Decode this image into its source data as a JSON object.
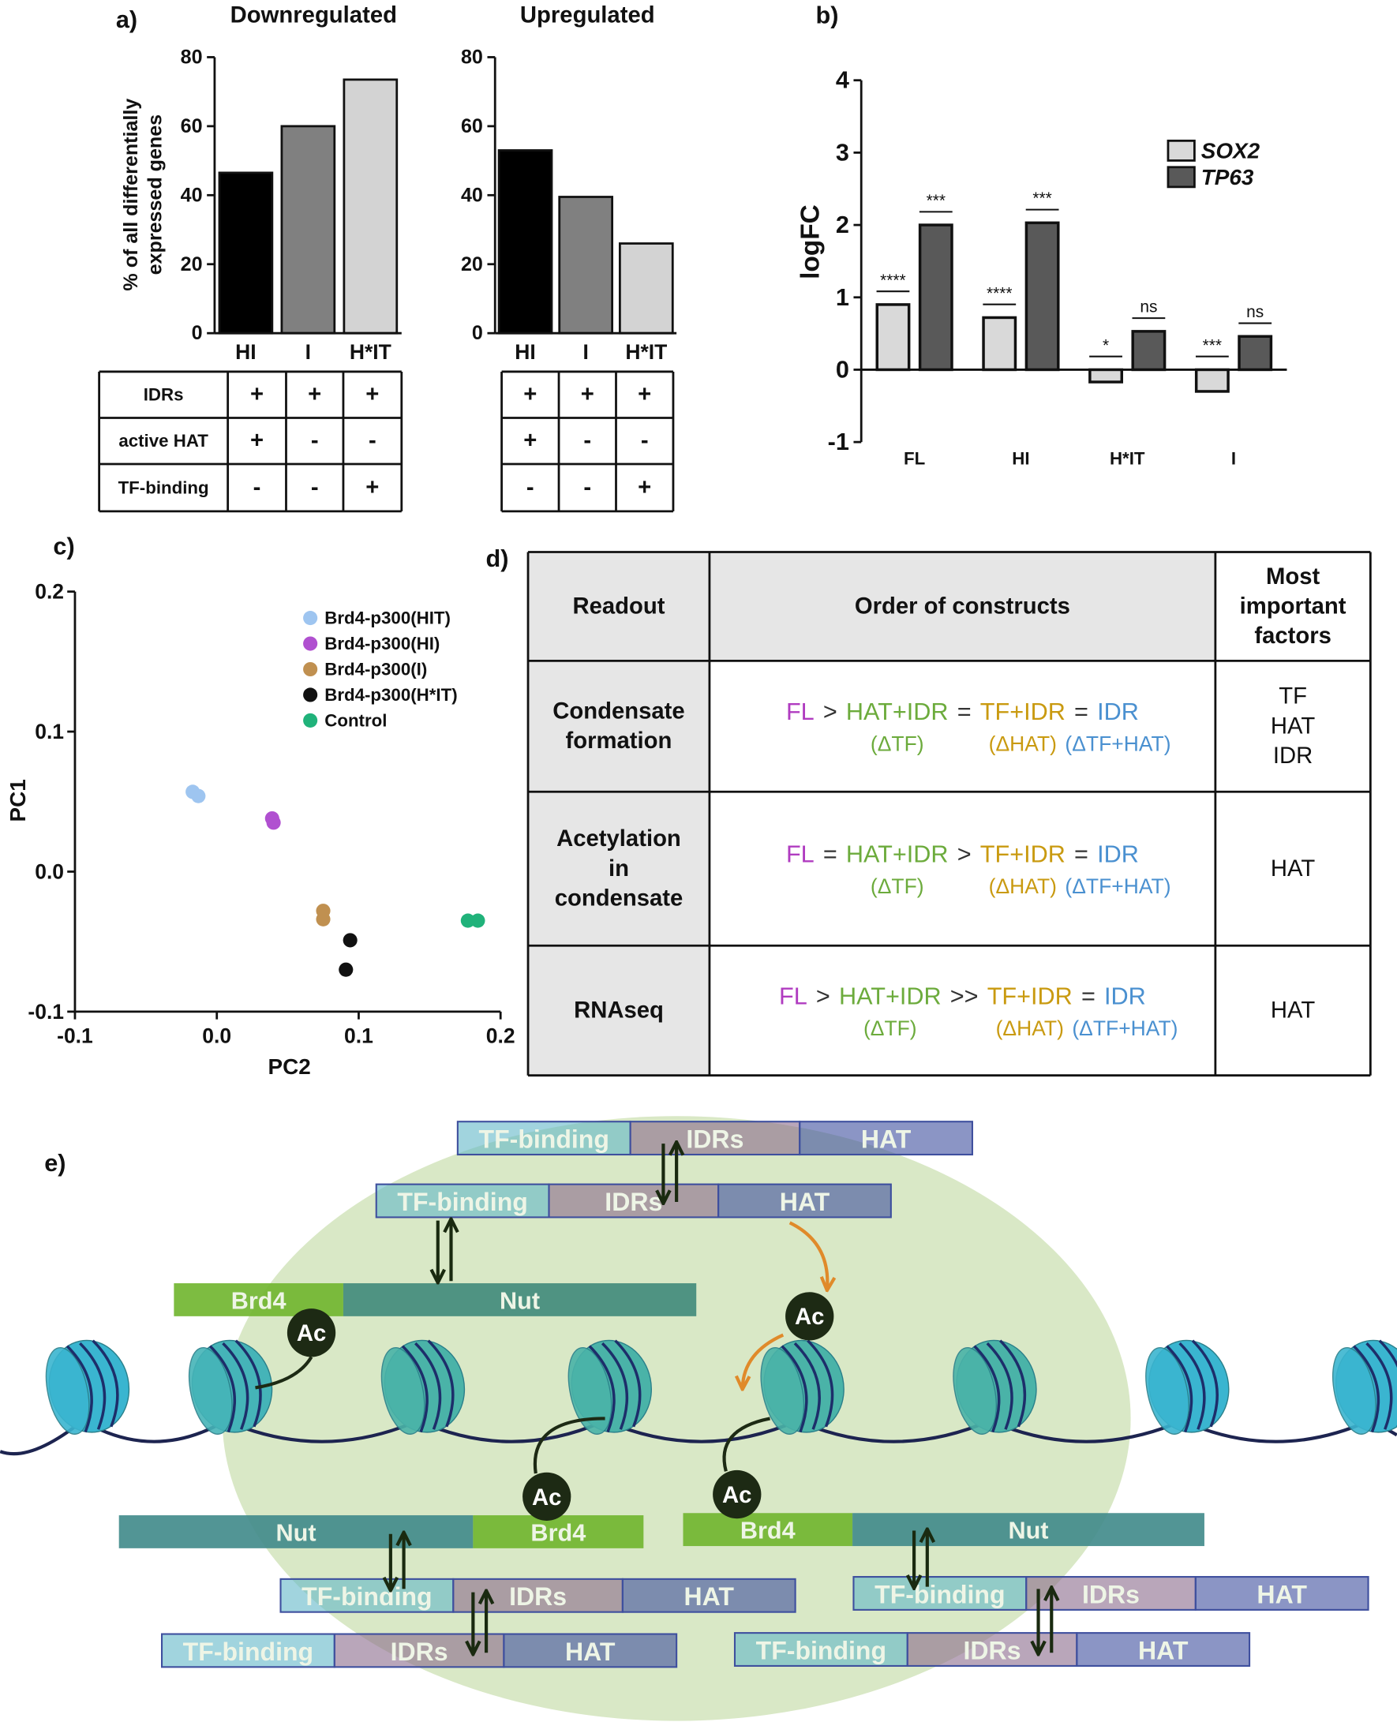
{
  "panel_labels": [
    "a)",
    "b)",
    "c)",
    "d)",
    "e)"
  ],
  "chart_data": [
    {
      "type": "bar",
      "title": "Downregulated",
      "y_label": [
        "% of all differentially",
        "expressed genes"
      ],
      "categories": [
        "HI",
        "I",
        "H*IT"
      ],
      "values": [
        46.5,
        60,
        73.5
      ],
      "colors": [
        "#000000",
        "#808080",
        "#d3d3d3"
      ],
      "ylim": [
        0,
        80
      ],
      "yticks": [
        0,
        20,
        40,
        60,
        80
      ]
    },
    {
      "type": "bar",
      "title": "Upregulated",
      "categories": [
        "HI",
        "I",
        "H*IT"
      ],
      "values": [
        53,
        39.5,
        26
      ],
      "colors": [
        "#000000",
        "#808080",
        "#d3d3d3"
      ],
      "ylim": [
        0,
        80
      ],
      "yticks": [
        0,
        20,
        40,
        60,
        80
      ]
    },
    {
      "type": "bar",
      "y_label": "logFC",
      "categories": [
        "FL",
        "HI",
        "H*IT",
        "I"
      ],
      "series": [
        {
          "name": "SOX2",
          "color": "#d9d9d9",
          "values": [
            0.9,
            0.72,
            -0.17,
            -0.3
          ],
          "significance": [
            "****",
            "****",
            "*",
            "***"
          ]
        },
        {
          "name": "TP63",
          "color": "#595959",
          "values": [
            2.0,
            2.03,
            0.53,
            0.46
          ],
          "significance": [
            "***",
            "***",
            "ns",
            "ns"
          ]
        }
      ],
      "ylim": [
        -1,
        4
      ],
      "yticks": [
        -1,
        0,
        1,
        2,
        3,
        4
      ]
    },
    {
      "type": "scatter",
      "x_label": "PC2",
      "y_label": "PC1",
      "xlim": [
        -0.1,
        0.2
      ],
      "ylim": [
        -0.1,
        0.2
      ],
      "xticks": [
        -0.1,
        {
          "value": 0,
          "label": "0.0"
        },
        0.1,
        0.2
      ],
      "yticks": [
        -0.1,
        {
          "value": 0,
          "label": "0.0"
        },
        0.1,
        0.2
      ],
      "series": [
        {
          "name": "Brd4-p300(HIT)",
          "color": "#9ec5f0",
          "x": [
            -0.017,
            -0.013
          ],
          "values": [
            0.057,
            0.054
          ]
        },
        {
          "name": "Brd4-p300(HI)",
          "color": "#b050d0",
          "x": [
            0.039,
            0.04
          ],
          "values": [
            0.038,
            0.035
          ]
        },
        {
          "name": "Brd4-p300(I)",
          "color": "#c09050",
          "x": [
            0.075,
            0.075
          ],
          "values": [
            -0.028,
            -0.034
          ]
        },
        {
          "name": "Brd4-p300(H*IT)",
          "color": "#111111",
          "x": [
            0.094,
            0.091
          ],
          "values": [
            -0.049,
            -0.07
          ]
        },
        {
          "name": "Control",
          "color": "#20b27a",
          "x": [
            0.177,
            0.184
          ],
          "values": [
            -0.035,
            -0.035
          ]
        }
      ]
    }
  ],
  "table_a": {
    "row_headers": [
      "IDRs",
      "active HAT",
      "TF-binding"
    ],
    "downregulated": [
      [
        "+",
        "+",
        "+"
      ],
      [
        "+",
        "-",
        "-"
      ],
      [
        "-",
        "-",
        "+"
      ]
    ],
    "upregulated": [
      [
        "+",
        "+",
        "+"
      ],
      [
        "+",
        "-",
        "-"
      ],
      [
        "-",
        "-",
        "+"
      ]
    ]
  },
  "table_d": {
    "header": [
      [
        "Readout"
      ],
      [
        "Order of constructs"
      ],
      [
        "Most",
        "important",
        "factors"
      ]
    ],
    "rows": [
      {
        "readout": [
          "Condensate",
          "formation"
        ],
        "order": [
          {
            "text": "FL",
            "color": "#b03cc0"
          },
          {
            "text": ">"
          },
          {
            "text": "HAT+IDR",
            "color": "#6cab3c",
            "sub": "(ΔTF)"
          },
          {
            "text": "="
          },
          {
            "text": "TF+IDR",
            "color": "#c99a10",
            "sub": "(ΔHAT)"
          },
          {
            "text": "="
          },
          {
            "text": "IDR",
            "color": "#4a90d0",
            "sub": "(ΔTF+HAT)"
          }
        ],
        "factors": [
          "TF",
          "HAT",
          "IDR"
        ]
      },
      {
        "readout": [
          "Acetylation",
          "in",
          "condensate"
        ],
        "order": [
          {
            "text": "FL",
            "color": "#b03cc0"
          },
          {
            "text": "="
          },
          {
            "text": "HAT+IDR",
            "color": "#6cab3c",
            "sub": "(ΔTF)"
          },
          {
            "text": ">"
          },
          {
            "text": "TF+IDR",
            "color": "#c99a10",
            "sub": "(ΔHAT)"
          },
          {
            "text": "="
          },
          {
            "text": "IDR",
            "color": "#4a90d0",
            "sub": "(ΔTF+HAT)"
          }
        ],
        "factors": [
          "HAT"
        ]
      },
      {
        "readout": [
          "RNAseq"
        ],
        "order": [
          {
            "text": "FL",
            "color": "#b03cc0"
          },
          {
            "text": ">"
          },
          {
            "text": "HAT+IDR",
            "color": "#6cab3c",
            "sub": "(ΔTF)"
          },
          {
            "text": ">>"
          },
          {
            "text": "TF+IDR",
            "color": "#c99a10",
            "sub": "(ΔHAT)"
          },
          {
            "text": "="
          },
          {
            "text": "IDR",
            "color": "#4a90d0",
            "sub": "(ΔTF+HAT)"
          }
        ],
        "factors": [
          "HAT"
        ]
      }
    ]
  },
  "diagram": {
    "constructs": [
      [
        "TF-binding",
        "IDRs",
        "HAT"
      ],
      [
        "TF-binding",
        "IDRs",
        "HAT"
      ],
      [
        "TF-binding",
        "IDRs",
        "HAT"
      ],
      [
        "TF-binding",
        "IDRs",
        "HAT"
      ],
      [
        "TF-binding",
        "IDRs",
        "HAT"
      ],
      [
        "TF-binding",
        "IDRs",
        "HAT"
      ]
    ],
    "brd4_nut": [
      [
        "Brd4",
        "Nut"
      ],
      [
        "Nut",
        "Brd4"
      ],
      [
        "Brd4",
        "Nut"
      ]
    ],
    "ac": [
      "Ac",
      "Ac",
      "Ac",
      "Ac"
    ]
  }
}
